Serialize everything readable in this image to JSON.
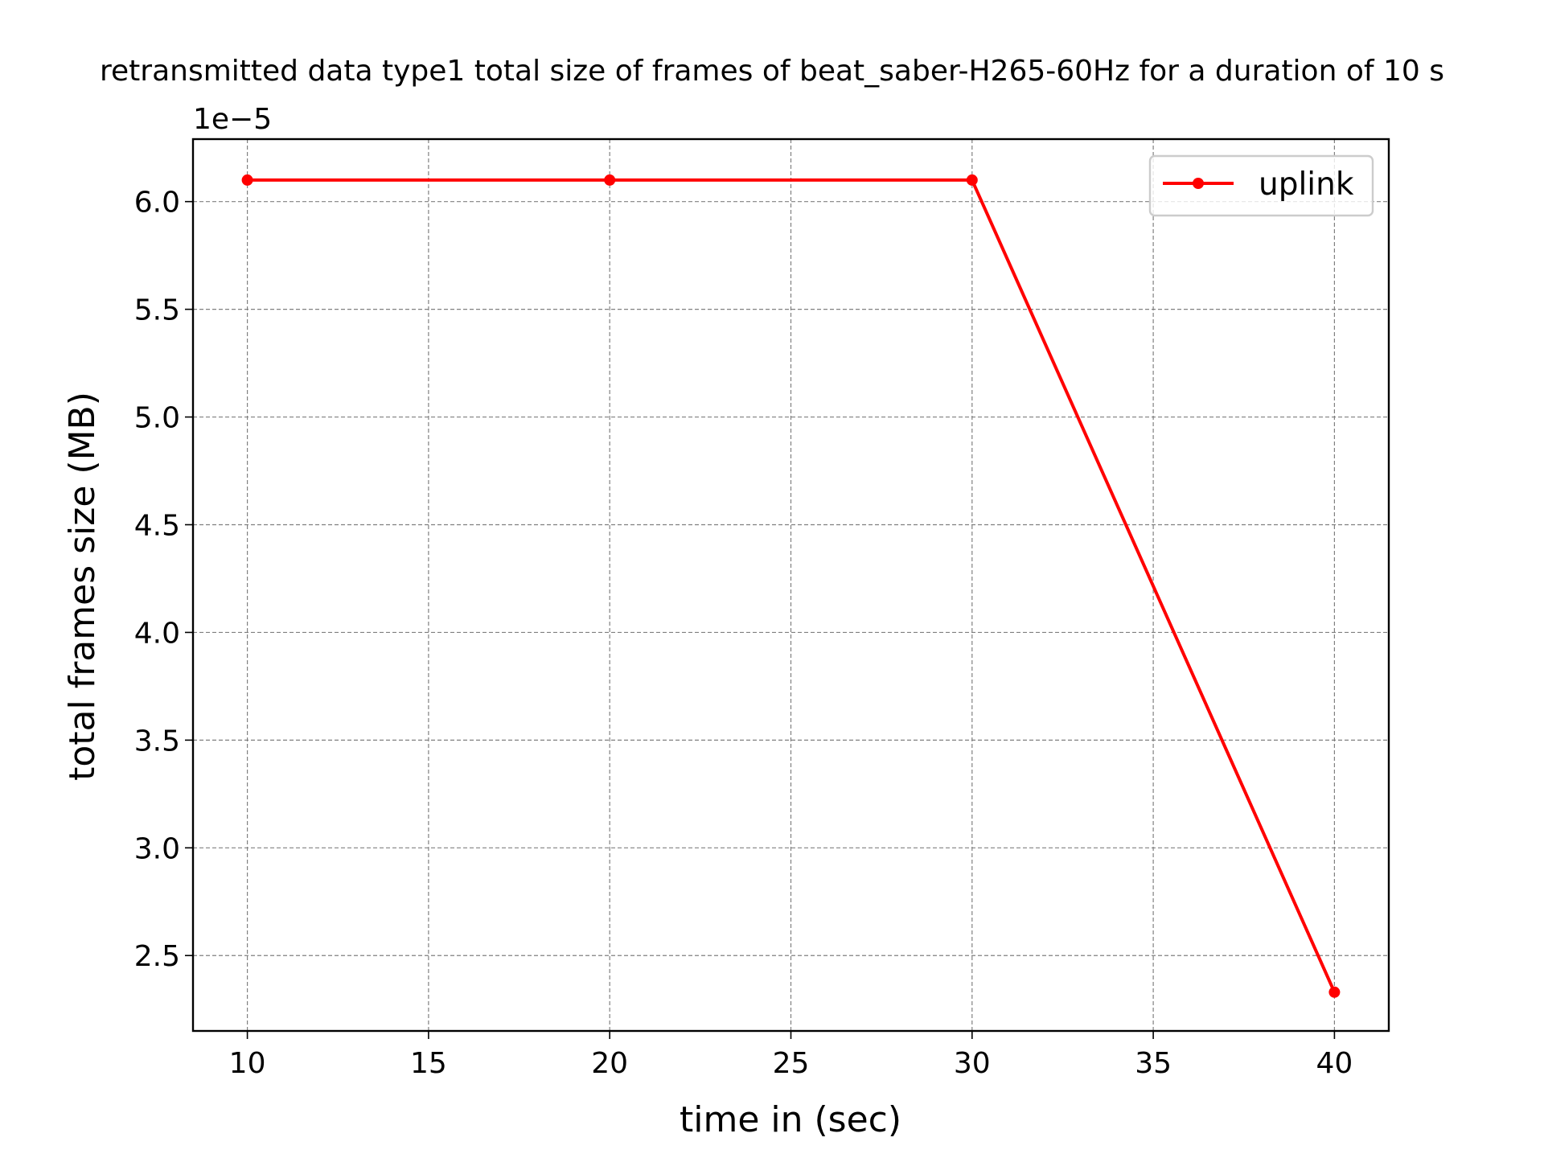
{
  "chart_data": {
    "type": "line",
    "title": "retransmitted data type1 total size of frames of beat_saber-H265-60Hz for a duration of 10 s",
    "xlabel": "time in (sec)",
    "ylabel": "total frames size (MB)",
    "y_offset_label": "1e−5",
    "x": [
      10,
      20,
      30,
      40
    ],
    "series": [
      {
        "name": "uplink",
        "color": "#ff0000",
        "values": [
          6.1e-05,
          6.1e-05,
          6.1e-05,
          2.33e-05
        ]
      }
    ],
    "xlim": [
      8.5,
      41.5
    ],
    "ylim": [
      2.15e-05,
      6.29e-05
    ],
    "x_ticks": [
      10,
      15,
      20,
      25,
      30,
      35,
      40
    ],
    "x_tick_labels": [
      "10",
      "15",
      "20",
      "25",
      "30",
      "35",
      "40"
    ],
    "y_ticks": [
      2.5e-05,
      3e-05,
      3.5e-05,
      4e-05,
      4.5e-05,
      5e-05,
      5.5e-05,
      6e-05
    ],
    "y_tick_labels": [
      "2.5",
      "3.0",
      "3.5",
      "4.0",
      "4.5",
      "5.0",
      "5.5",
      "6.0"
    ],
    "grid": true,
    "legend_position": "top-right"
  }
}
